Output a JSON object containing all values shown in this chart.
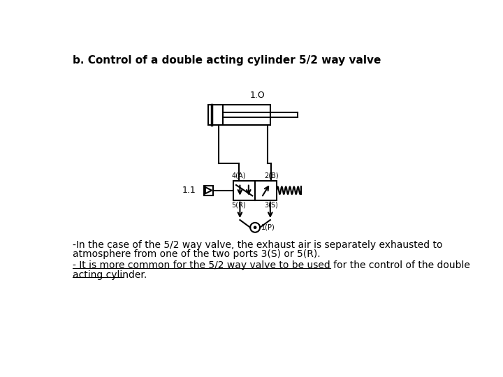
{
  "title": "b. Control of a double acting cylinder 5/2 way valve",
  "title_fontsize": 11,
  "bg_color": "#ffffff",
  "text_color": "#000000",
  "label_1O": "1.O",
  "label_11": "1.1",
  "label_4A": "4(A)",
  "label_2B": "2(B)",
  "label_5R": "5(R)",
  "label_3S": "3(S)",
  "label_1P": "1(P)",
  "para1_line1": "-In the case of the 5/2 way valve, the exhaust air is separately exhausted to",
  "para1_line2": "atmosphere from one of the two ports 3(S) or 5(R).",
  "para2_line1": "- It is more common for the 5/2 way valve to be used for the control of the double",
  "para2_line2": "acting cylinder.",
  "para_fontsize": 10,
  "small_fontsize": 7,
  "label_fontsize": 9
}
